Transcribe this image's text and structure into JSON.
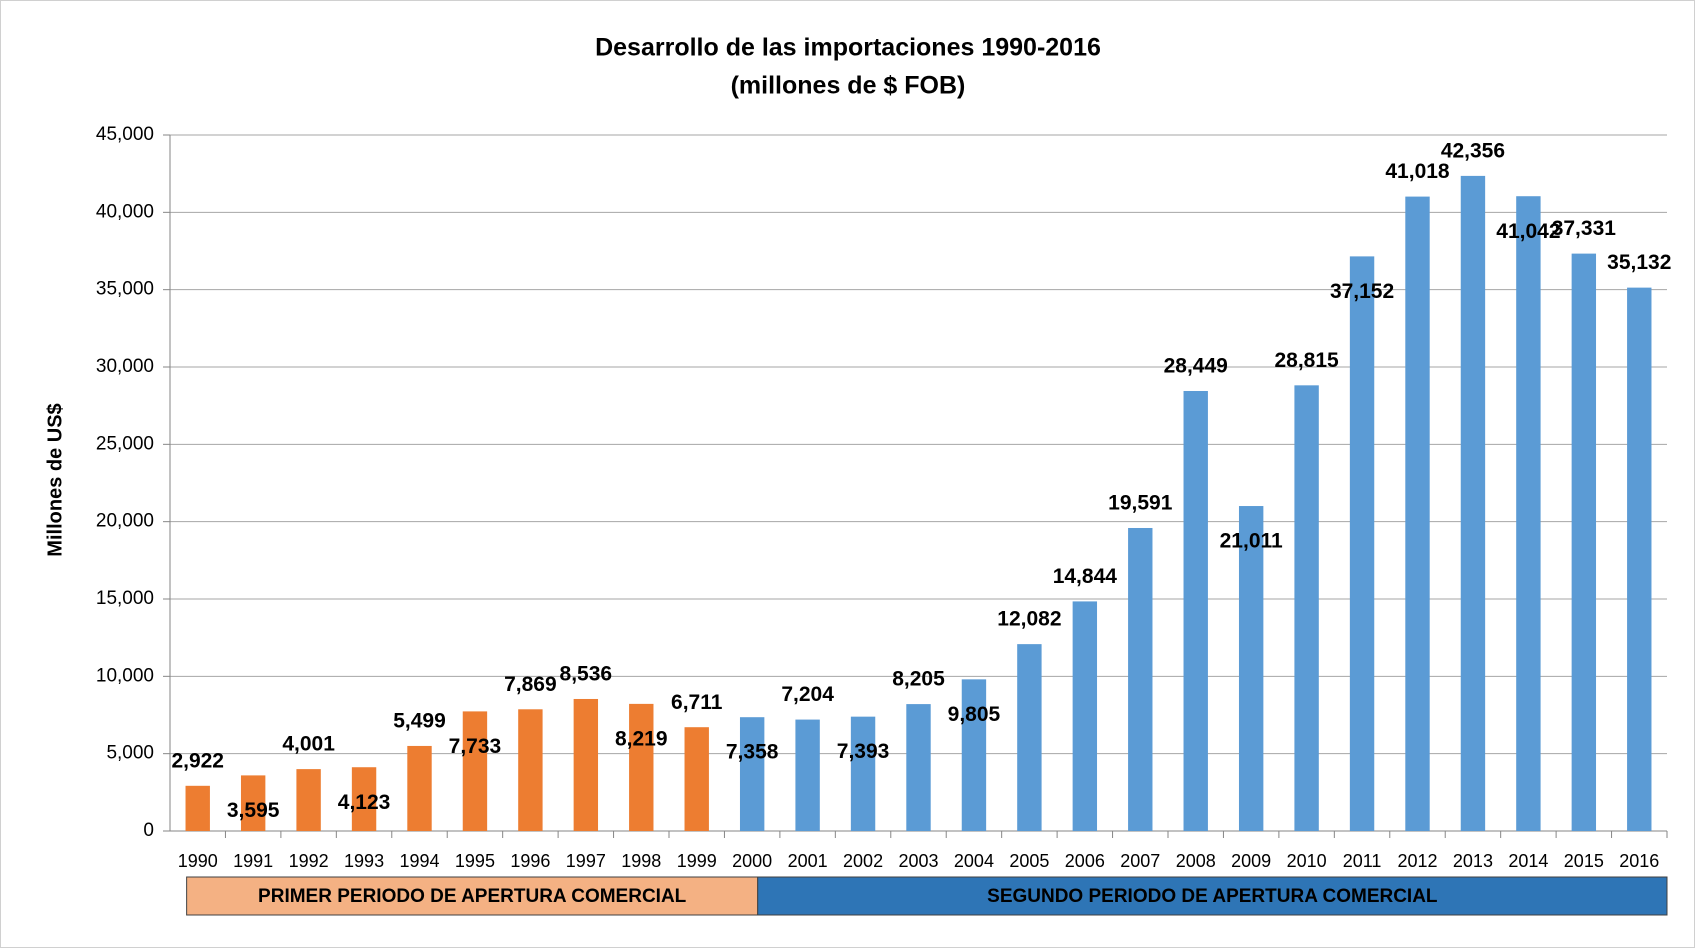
{
  "chart_data": {
    "type": "bar",
    "title": "Desarrollo de las importaciones 1990-2016",
    "subtitle": "(millones de $ FOB)",
    "y_label": "Millones de US$",
    "categories": [
      "1990",
      "1991",
      "1992",
      "1993",
      "1994",
      "1995",
      "1996",
      "1997",
      "1998",
      "1999",
      "2000",
      "2001",
      "2002",
      "2003",
      "2004",
      "2005",
      "2006",
      "2007",
      "2008",
      "2009",
      "2010",
      "2011",
      "2012",
      "2013",
      "2014",
      "2015",
      "2016"
    ],
    "values": [
      2922,
      3595,
      4001,
      4123,
      5499,
      7733,
      7869,
      8536,
      8219,
      6711,
      7358,
      7204,
      7393,
      8205,
      9805,
      12082,
      14844,
      19591,
      28449,
      21011,
      28815,
      37152,
      41018,
      42356,
      41042,
      37331,
      35132
    ],
    "value_labels": [
      "2,922",
      "3,595",
      "4,001",
      "4,123",
      "5,499",
      "7,733",
      "7,869",
      "8,536",
      "8,219",
      "6,711",
      "7,358",
      "7,204",
      "7,393",
      "8,205",
      "9,805",
      "12,082",
      "14,844",
      "19,591",
      "28,449",
      "21,011",
      "28,815",
      "37,152",
      "41,018",
      "42,356",
      "41,042",
      "37,331",
      "35,132"
    ],
    "colors": [
      "#ed7d31",
      "#ed7d31",
      "#ed7d31",
      "#ed7d31",
      "#ed7d31",
      "#ed7d31",
      "#ed7d31",
      "#ed7d31",
      "#ed7d31",
      "#ed7d31",
      "#5b9bd5",
      "#5b9bd5",
      "#5b9bd5",
      "#5b9bd5",
      "#5b9bd5",
      "#5b9bd5",
      "#5b9bd5",
      "#5b9bd5",
      "#5b9bd5",
      "#5b9bd5",
      "#5b9bd5",
      "#5b9bd5",
      "#5b9bd5",
      "#5b9bd5",
      "#5b9bd5",
      "#5b9bd5",
      "#5b9bd5"
    ],
    "ylim": [
      0,
      45000
    ],
    "yticks": [
      0,
      {
        "value": 5000,
        "label": "5,000"
      },
      {
        "value": 10000,
        "label": "10,000"
      },
      {
        "value": 15000,
        "label": "15,000"
      },
      {
        "value": 20000,
        "label": "20,000"
      },
      {
        "value": 25000,
        "label": "25,000"
      },
      {
        "value": 30000,
        "label": "30,000"
      },
      {
        "value": 35000,
        "label": "35,000"
      },
      {
        "value": 40000,
        "label": "40,000"
      },
      {
        "value": 45000,
        "label": "45,000"
      }
    ],
    "grid": true,
    "periods": [
      {
        "label": "PRIMER PERIODO DE APERTURA COMERCIAL",
        "color": "#f4b183"
      },
      {
        "label": "SEGUNDO PERIODO DE APERTURA COMERCIAL",
        "color": "#2e75b6"
      }
    ]
  }
}
